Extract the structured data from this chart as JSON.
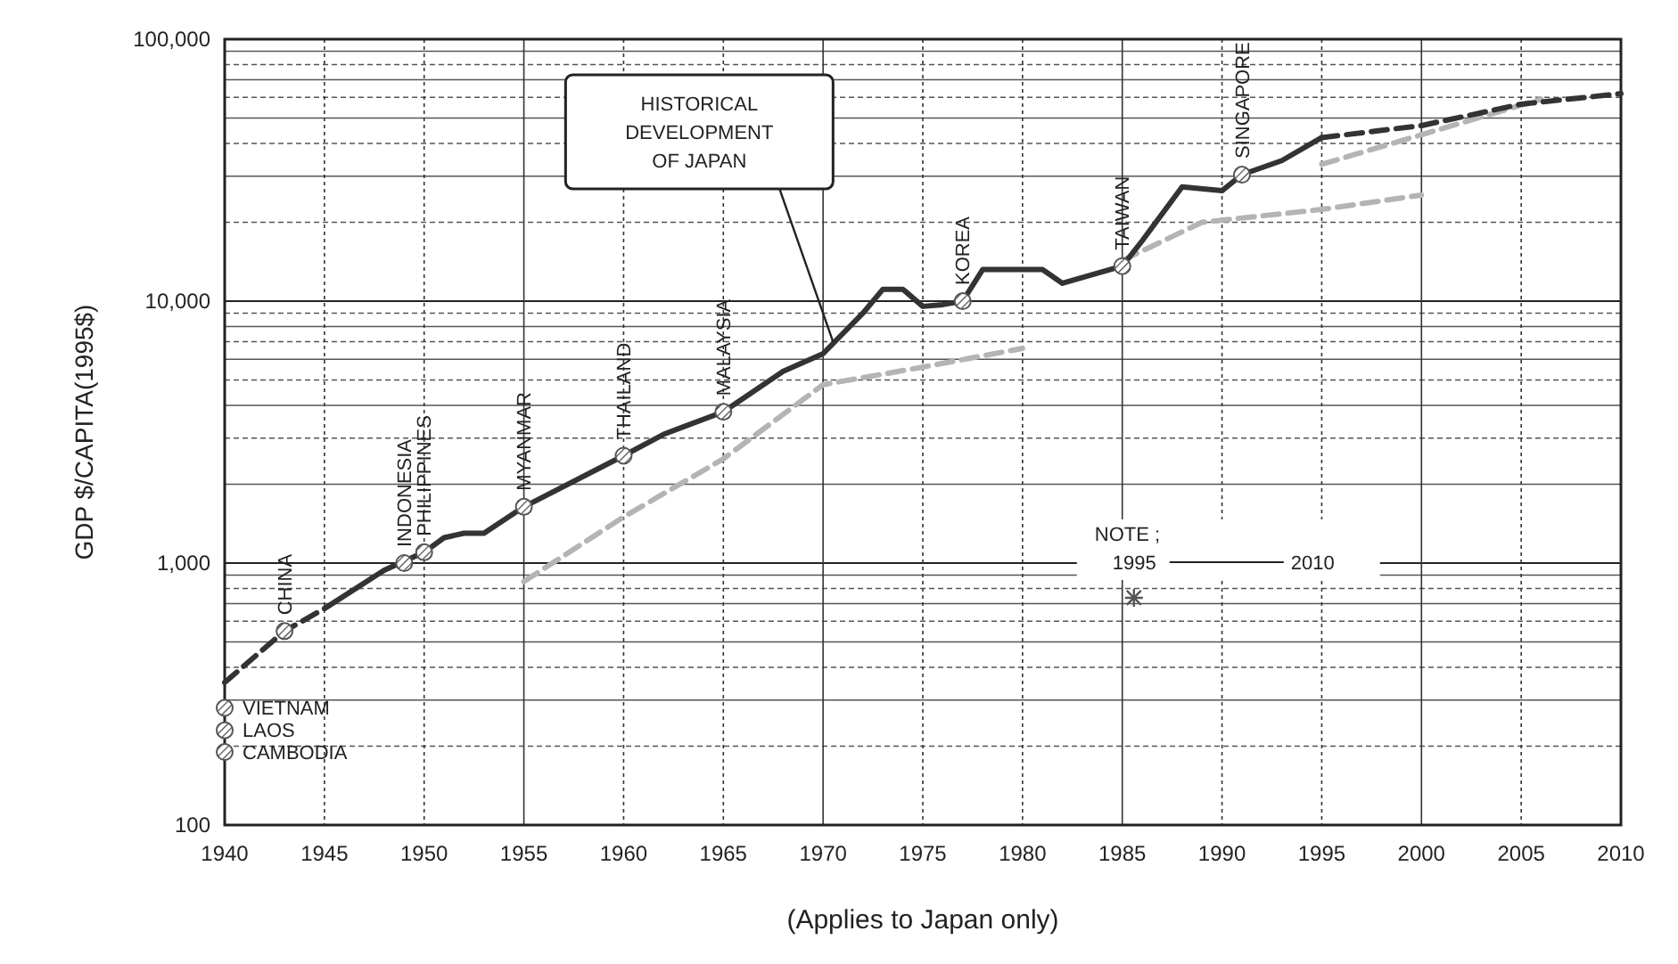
{
  "chart_data": {
    "type": "line",
    "ylabel": "GDP  $/CAPITA(1995$)",
    "xlabel": "(Applies to Japan only)",
    "log": "y",
    "grid": true,
    "marker": "none",
    "xlim": [
      1940,
      2010
    ],
    "xticks": [
      1940,
      1945,
      1950,
      1955,
      1960,
      1965,
      1970,
      1975,
      1980,
      1985,
      1990,
      1995,
      2000,
      2005,
      2010
    ],
    "ylim": [
      100,
      100000
    ],
    "yticks": [
      {
        "value": 100,
        "label": "100"
      },
      {
        "value": 200,
        "label": null
      },
      {
        "value": 300,
        "label": null
      },
      {
        "value": 400,
        "label": null
      },
      {
        "value": 500,
        "label": null
      },
      {
        "value": 600,
        "label": null
      },
      {
        "value": 700,
        "label": null
      },
      {
        "value": 800,
        "label": null
      },
      {
        "value": 900,
        "label": null
      },
      {
        "value": 1000,
        "label": "1,000"
      },
      {
        "value": 2000,
        "label": null
      },
      {
        "value": 3000,
        "label": null
      },
      {
        "value": 4000,
        "label": null
      },
      {
        "value": 5000,
        "label": null
      },
      {
        "value": 6000,
        "label": null
      },
      {
        "value": 7000,
        "label": null
      },
      {
        "value": 8000,
        "label": null
      },
      {
        "value": 9000,
        "label": null
      },
      {
        "value": 10000,
        "label": "10,000"
      },
      {
        "value": 20000,
        "label": null
      },
      {
        "value": 30000,
        "label": null
      },
      {
        "value": 40000,
        "label": null
      },
      {
        "value": 50000,
        "label": null
      },
      {
        "value": 60000,
        "label": null
      },
      {
        "value": 70000,
        "label": null
      },
      {
        "value": 80000,
        "label": null
      },
      {
        "value": 90000,
        "label": null
      },
      {
        "value": 100000,
        "label": "100,000"
      }
    ],
    "series": [
      {
        "color": "#b4b4b4",
        "line_style": "dashed",
        "x": [
          1955,
          1960,
          1965,
          1970,
          1975,
          1980
        ],
        "values": [
          850,
          1500,
          2500,
          4800,
          5600,
          6600
        ]
      },
      {
        "color": "#b4b4b4",
        "line_style": "dashed",
        "x": [
          1985,
          1989,
          1995,
          2000
        ],
        "values": [
          14300,
          20000,
          22400,
          25400
        ]
      },
      {
        "color": "#b4b4b4",
        "line_style": "dashed",
        "x": [
          1995,
          2006
        ],
        "values": [
          33300,
          59000
        ]
      },
      {
        "color": "#333333",
        "line_style": "dashed",
        "x": [
          1940,
          1943,
          1945
        ],
        "values": [
          350,
          550,
          670
        ]
      },
      {
        "color": "#333333",
        "line_style": "solid",
        "x": [
          1945,
          1948,
          1950,
          1951,
          1952,
          1953,
          1955,
          1960,
          1962,
          1965,
          1968,
          1970,
          1972,
          1973,
          1974,
          1975,
          1976,
          1977,
          1978,
          1981,
          1982,
          1985,
          1986,
          1988,
          1990,
          1991,
          1993,
          1995
        ],
        "values": [
          670,
          940,
          1100,
          1250,
          1300,
          1300,
          1640,
          2570,
          3100,
          3780,
          5400,
          6300,
          9000,
          11100,
          11100,
          9550,
          9700,
          10000,
          13200,
          13200,
          11700,
          13600,
          17000,
          27300,
          26400,
          30400,
          34400,
          42100
        ]
      },
      {
        "color": "#333333",
        "line_style": "dashed",
        "x": [
          1995,
          2000,
          2005,
          2010
        ],
        "values": [
          42100,
          46800,
          56500,
          62000
        ]
      }
    ],
    "annotations": [
      {
        "text": "HISTORICAL DEVELOPMENT OF JAPAN",
        "x": 1970.5,
        "y": 7000
      },
      {
        "text": "VIETNAM",
        "x": 1940,
        "y": 280
      },
      {
        "text": "LAOS",
        "x": 1940,
        "y": 230
      },
      {
        "text": "CAMBODIA",
        "x": 1940,
        "y": 190
      },
      {
        "text": "CHINA",
        "x": 1943,
        "y": 550
      },
      {
        "text": "INDONESIA",
        "x": 1949,
        "y": 1000
      },
      {
        "text": "PHILIPPINES",
        "x": 1950,
        "y": 1100
      },
      {
        "text": "MYANMAR",
        "x": 1955,
        "y": 1640
      },
      {
        "text": "THAILAND",
        "x": 1960,
        "y": 2570
      },
      {
        "text": "MALAYSIA",
        "x": 1965,
        "y": 3780
      },
      {
        "text": "KOREA",
        "x": 1977,
        "y": 10000
      },
      {
        "text": "TAIWAN",
        "x": 1985,
        "y": 13600
      },
      {
        "text": "SINGAPORE",
        "x": 1991,
        "y": 30400
      },
      "NOTE ;",
      "1995",
      "2010"
    ]
  }
}
